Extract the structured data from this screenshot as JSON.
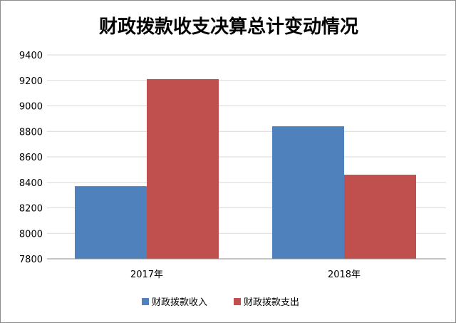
{
  "chart_data": {
    "type": "bar",
    "title": "财政拨款收支决算总计变动情况",
    "categories": [
      "2017年",
      "2018年"
    ],
    "series": [
      {
        "name": "财政拨款收入",
        "color": "#4f81bd",
        "values": [
          8370,
          8840
        ]
      },
      {
        "name": "财政拨款支出",
        "color": "#c0504d",
        "values": [
          9210,
          8460
        ]
      }
    ],
    "ylim": [
      7800,
      9400
    ],
    "yticks": [
      "9400",
      "9200",
      "9000",
      "8800",
      "8600",
      "8400",
      "8200",
      "8000",
      "7800"
    ],
    "xlabel": "",
    "ylabel": "",
    "grid": true,
    "legend_position": "bottom"
  }
}
